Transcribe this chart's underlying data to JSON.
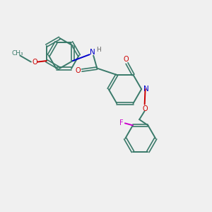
{
  "bg_color": "#f0f0f0",
  "bond_color": "#3a7a6a",
  "N_color": "#0000cc",
  "O_color": "#cc0000",
  "F_color": "#cc00cc",
  "H_color": "#666666",
  "lw": 1.4,
  "dlw": 1.2,
  "doff": 0.06,
  "figsize": [
    3.0,
    3.0
  ],
  "dpi": 100,
  "xlim": [
    0,
    10
  ],
  "ylim": [
    0,
    10
  ],
  "ring_r": 0.72,
  "fs": 7.0
}
